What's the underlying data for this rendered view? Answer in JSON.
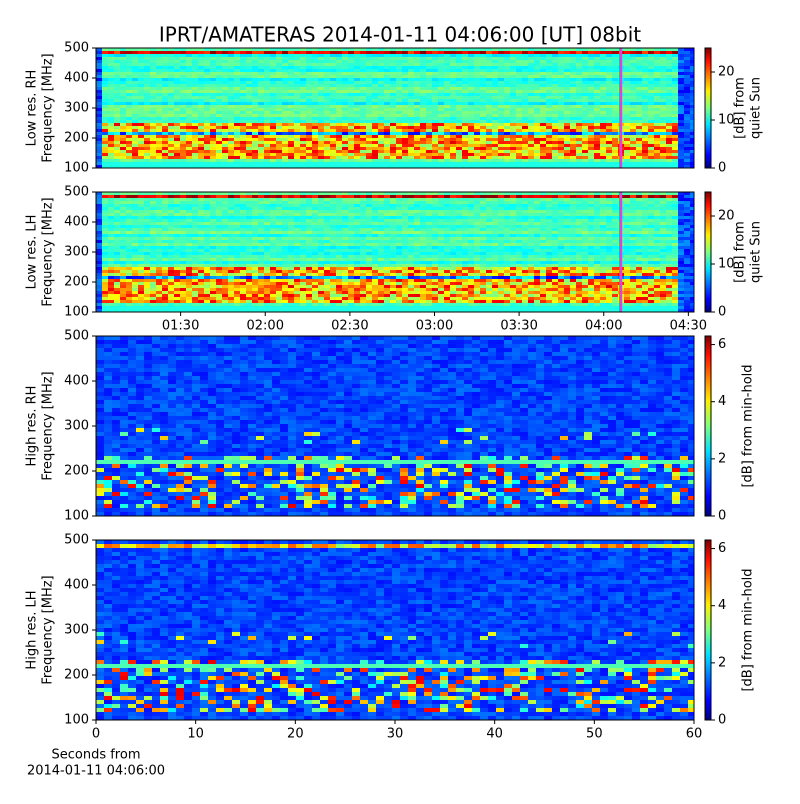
{
  "chart_data": [
    {
      "type": "heatmap",
      "title": "IPRT/AMATERAS 2014-01-11 04:06:00 [UT]   08bit",
      "ylabel": [
        "Low res. RH",
        "Frequency [MHz]"
      ],
      "ylim": [
        100,
        500
      ],
      "yticks": [
        100,
        200,
        300,
        400,
        500
      ],
      "xlim": [
        60,
        272
      ],
      "colorbar_label": [
        "[dB] from",
        "quiet Sun"
      ],
      "clim": [
        0,
        25
      ],
      "cticks": [
        0,
        10,
        20
      ],
      "marker_x": 246,
      "marker_color": "#e040e0",
      "colormap": "jet"
    },
    {
      "type": "heatmap",
      "ylabel": [
        "Low res. LH",
        "Frequency [MHz]"
      ],
      "ylim": [
        100,
        500
      ],
      "yticks": [
        100,
        200,
        300,
        400,
        500
      ],
      "xlim": [
        60,
        272
      ],
      "xticks": [
        {
          "value": 90,
          "label": "01:30"
        },
        {
          "value": 120,
          "label": "02:00"
        },
        {
          "value": 150,
          "label": "02:30"
        },
        {
          "value": 180,
          "label": "03:00"
        },
        {
          "value": 210,
          "label": "03:30"
        },
        {
          "value": 240,
          "label": "04:00"
        },
        {
          "value": 270,
          "label": "04:30"
        }
      ],
      "colorbar_label": [
        "[dB] from",
        "quiet Sun"
      ],
      "clim": [
        0,
        25
      ],
      "cticks": [
        0,
        10,
        20
      ],
      "marker_x": 246,
      "marker_color": "#e040e0",
      "colormap": "jet"
    },
    {
      "type": "heatmap",
      "ylabel": [
        "High res. RH",
        "Frequency [MHz]"
      ],
      "ylim": [
        100,
        500
      ],
      "yticks": [
        100,
        200,
        300,
        400,
        500
      ],
      "xlim": [
        0,
        60
      ],
      "colorbar_label": [
        "[dB] from min-hold"
      ],
      "clim": [
        0,
        6.3
      ],
      "cticks": [
        0,
        2,
        4,
        6
      ],
      "colormap": "jet"
    },
    {
      "type": "heatmap",
      "ylabel": [
        "High res. LH",
        "Frequency [MHz]"
      ],
      "ylim": [
        100,
        500
      ],
      "yticks": [
        100,
        200,
        300,
        400,
        500
      ],
      "xlim": [
        0,
        60
      ],
      "xticks": [
        0,
        10,
        20,
        30,
        40,
        50,
        60
      ],
      "xlabel": [
        "Seconds from",
        "2014-01-11 04:06:00"
      ],
      "colorbar_label": [
        "[dB] from min-hold"
      ],
      "clim": [
        0,
        6.3
      ],
      "cticks": [
        0,
        2,
        4,
        6
      ],
      "colormap": "jet"
    }
  ]
}
